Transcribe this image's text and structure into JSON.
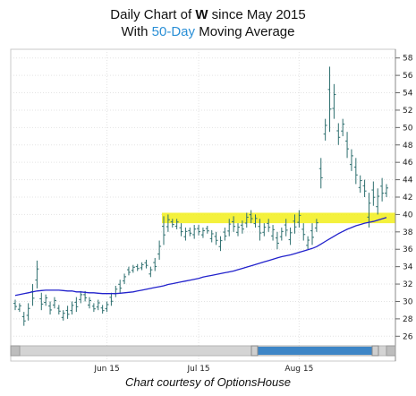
{
  "title": {
    "line1_prefix": "Daily Chart of ",
    "line1_ticker": "W",
    "line1_suffix": " since May 2015",
    "line2_prefix": "With ",
    "line2_highlight": "50-Day",
    "line2_suffix": " Moving Average"
  },
  "credit": "Chart courtesy of OptionsHouse",
  "colors": {
    "price_bars": "#2e6f6f",
    "moving_average": "#2222cc",
    "support_band": "#f2ef1a",
    "highlight_text": "#2a8fd6",
    "scrollbar": "#3d85c6"
  },
  "chart_data": {
    "type": "line",
    "ylim": [
      25,
      59
    ],
    "y_ticks": [
      26,
      28,
      30,
      32,
      34,
      36,
      38,
      40,
      42,
      44,
      46,
      48,
      50,
      52,
      54,
      56,
      58
    ],
    "x_labels": [
      "Jun 15",
      "Jul 15",
      "Aug 15"
    ],
    "grid": true,
    "support_band": [
      39,
      40.2
    ],
    "series": [
      {
        "style": "price-bars",
        "points": [
          {
            "lo": 29.0,
            "hi": 30.2
          },
          {
            "lo": 28.8,
            "hi": 29.8
          },
          {
            "lo": 27.2,
            "hi": 28.8
          },
          {
            "lo": 27.8,
            "hi": 29.8
          },
          {
            "lo": 29.5,
            "hi": 32.0
          },
          {
            "lo": 31.5,
            "hi": 34.7
          },
          {
            "lo": 29.0,
            "hi": 31.0
          },
          {
            "lo": 29.5,
            "hi": 30.8
          },
          {
            "lo": 28.5,
            "hi": 30.0
          },
          {
            "lo": 29.2,
            "hi": 30.5
          },
          {
            "lo": 28.5,
            "hi": 29.6
          },
          {
            "lo": 27.8,
            "hi": 29.0
          },
          {
            "lo": 28.0,
            "hi": 29.5
          },
          {
            "lo": 28.5,
            "hi": 30.0
          },
          {
            "lo": 28.8,
            "hi": 30.5
          },
          {
            "lo": 29.8,
            "hi": 31.2
          },
          {
            "lo": 30.0,
            "hi": 31.2
          },
          {
            "lo": 29.2,
            "hi": 30.5
          },
          {
            "lo": 28.8,
            "hi": 29.8
          },
          {
            "lo": 29.0,
            "hi": 30.2
          },
          {
            "lo": 28.6,
            "hi": 29.6
          },
          {
            "lo": 28.8,
            "hi": 30.0
          },
          {
            "lo": 29.5,
            "hi": 31.0
          },
          {
            "lo": 30.5,
            "hi": 31.8
          },
          {
            "lo": 31.0,
            "hi": 32.5
          },
          {
            "lo": 32.0,
            "hi": 33.2
          },
          {
            "lo": 33.0,
            "hi": 34.0
          },
          {
            "lo": 33.3,
            "hi": 34.2
          },
          {
            "lo": 33.5,
            "hi": 34.3
          },
          {
            "lo": 33.6,
            "hi": 34.5
          },
          {
            "lo": 33.8,
            "hi": 34.8
          },
          {
            "lo": 32.8,
            "hi": 34.0
          },
          {
            "lo": 33.5,
            "hi": 35.0
          },
          {
            "lo": 34.8,
            "hi": 37.0
          },
          {
            "lo": 36.5,
            "hi": 39.8
          },
          {
            "lo": 38.0,
            "hi": 40.0
          },
          {
            "lo": 38.5,
            "hi": 39.5
          },
          {
            "lo": 38.3,
            "hi": 39.5
          },
          {
            "lo": 37.5,
            "hi": 39.0
          },
          {
            "lo": 37.0,
            "hi": 38.5
          },
          {
            "lo": 37.5,
            "hi": 38.5
          },
          {
            "lo": 37.2,
            "hi": 38.8
          },
          {
            "lo": 37.6,
            "hi": 38.8
          },
          {
            "lo": 37.3,
            "hi": 38.5
          },
          {
            "lo": 37.8,
            "hi": 38.7
          },
          {
            "lo": 36.8,
            "hi": 38.2
          },
          {
            "lo": 36.5,
            "hi": 38.0
          },
          {
            "lo": 35.8,
            "hi": 37.5
          },
          {
            "lo": 37.0,
            "hi": 38.5
          },
          {
            "lo": 37.5,
            "hi": 39.5
          },
          {
            "lo": 38.0,
            "hi": 39.8
          },
          {
            "lo": 37.5,
            "hi": 39.0
          },
          {
            "lo": 37.8,
            "hi": 39.3
          },
          {
            "lo": 38.5,
            "hi": 40.2
          },
          {
            "lo": 39.0,
            "hi": 40.5
          },
          {
            "lo": 38.5,
            "hi": 40.0
          },
          {
            "lo": 37.0,
            "hi": 39.5
          },
          {
            "lo": 37.5,
            "hi": 39.0
          },
          {
            "lo": 38.0,
            "hi": 39.5
          },
          {
            "lo": 37.0,
            "hi": 38.8
          },
          {
            "lo": 36.0,
            "hi": 38.0
          },
          {
            "lo": 37.0,
            "hi": 38.5
          },
          {
            "lo": 37.5,
            "hi": 39.5
          },
          {
            "lo": 36.5,
            "hi": 38.5
          },
          {
            "lo": 37.8,
            "hi": 40.0
          },
          {
            "lo": 38.5,
            "hi": 40.5
          },
          {
            "lo": 37.0,
            "hi": 39.0
          },
          {
            "lo": 36.0,
            "hi": 37.5
          },
          {
            "lo": 36.5,
            "hi": 39.0
          },
          {
            "lo": 38.0,
            "hi": 39.5
          },
          {
            "lo": 43.0,
            "hi": 46.5
          },
          {
            "lo": 48.5,
            "hi": 51.0
          },
          {
            "lo": 49.5,
            "hi": 57.0
          },
          {
            "lo": 51.0,
            "hi": 55.0
          },
          {
            "lo": 48.0,
            "hi": 50.5
          },
          {
            "lo": 49.0,
            "hi": 51.0
          },
          {
            "lo": 46.5,
            "hi": 49.5
          },
          {
            "lo": 45.0,
            "hi": 47.5
          },
          {
            "lo": 43.5,
            "hi": 46.5
          },
          {
            "lo": 42.5,
            "hi": 44.5
          },
          {
            "lo": 42.0,
            "hi": 44.0
          },
          {
            "lo": 38.5,
            "hi": 42.5
          },
          {
            "lo": 41.0,
            "hi": 43.8
          },
          {
            "lo": 40.0,
            "hi": 43.0
          },
          {
            "lo": 41.5,
            "hi": 44.2
          },
          {
            "lo": 42.0,
            "hi": 43.5
          }
        ]
      },
      {
        "style": "moving-average",
        "values": [
          30.7,
          30.8,
          30.9,
          31.0,
          31.1,
          31.2,
          31.25,
          31.3,
          31.3,
          31.3,
          31.3,
          31.25,
          31.2,
          31.2,
          31.1,
          31.1,
          31.05,
          31.0,
          31.0,
          30.95,
          30.9,
          30.9,
          30.9,
          30.9,
          30.95,
          31.0,
          31.05,
          31.1,
          31.2,
          31.3,
          31.4,
          31.5,
          31.6,
          31.7,
          31.8,
          31.95,
          32.05,
          32.15,
          32.25,
          32.35,
          32.45,
          32.55,
          32.65,
          32.8,
          32.9,
          33.0,
          33.1,
          33.2,
          33.3,
          33.4,
          33.5,
          33.65,
          33.8,
          33.95,
          34.1,
          34.25,
          34.4,
          34.55,
          34.7,
          34.85,
          35.0,
          35.15,
          35.25,
          35.35,
          35.5,
          35.65,
          35.8,
          35.95,
          36.1,
          36.3,
          36.6,
          36.9,
          37.2,
          37.5,
          37.8,
          38.05,
          38.3,
          38.5,
          38.7,
          38.85,
          39.0,
          39.1,
          39.2,
          39.35,
          39.5,
          39.65
        ]
      }
    ]
  }
}
